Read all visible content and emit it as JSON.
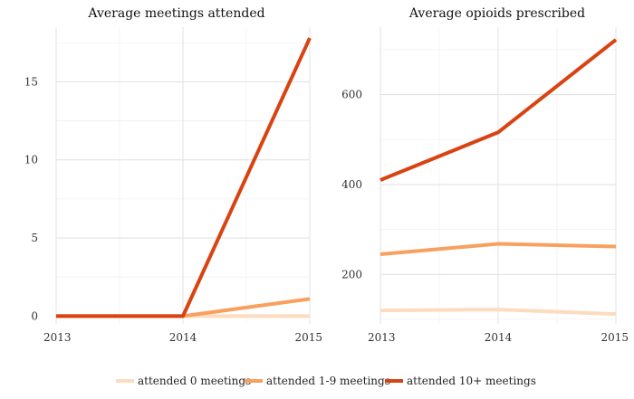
{
  "chart_data": [
    {
      "type": "line",
      "title": "Average meetings attended",
      "xlabel": "",
      "ylabel": "",
      "x": [
        2013,
        2014,
        2015
      ],
      "xlim": [
        2013,
        2015
      ],
      "ylim": [
        -0.5,
        18.5
      ],
      "y_ticks": [
        0,
        5,
        10,
        15
      ],
      "x_ticks": [
        2013,
        2014,
        2015
      ],
      "grid": true,
      "series": [
        {
          "name": "attended 0 meetings",
          "color": "#fcdcbd",
          "values": [
            0,
            0,
            0
          ]
        },
        {
          "name": "attended 1-9 meetings",
          "color": "#f8a15f",
          "values": [
            0,
            0,
            1.1
          ]
        },
        {
          "name": "attended 10+ meetings",
          "color": "#d94312",
          "values": [
            0,
            0,
            17.8
          ]
        }
      ]
    },
    {
      "type": "line",
      "title": "Average opioids prescribed",
      "xlabel": "",
      "ylabel": "",
      "x": [
        2013,
        2014,
        2015
      ],
      "xlim": [
        2013,
        2015
      ],
      "ylim": [
        90,
        750
      ],
      "y_ticks": [
        200,
        400,
        600
      ],
      "x_ticks": [
        2013,
        2014,
        2015
      ],
      "grid": true,
      "series": [
        {
          "name": "attended 0 meetings",
          "color": "#fcdcbd",
          "values": [
            120,
            122,
            112
          ]
        },
        {
          "name": "attended 1-9 meetings",
          "color": "#f8a15f",
          "values": [
            245,
            268,
            262
          ]
        },
        {
          "name": "attended 10+ meetings",
          "color": "#d94312",
          "values": [
            410,
            516,
            722
          ]
        }
      ]
    }
  ],
  "legend": {
    "placement": "bottom",
    "items": [
      {
        "label": "attended 0 meetings",
        "color": "#fcdcbd"
      },
      {
        "label": "attended 1-9 meetings",
        "color": "#f8a15f"
      },
      {
        "label": "attended 10+ meetings",
        "color": "#d94312"
      }
    ]
  }
}
